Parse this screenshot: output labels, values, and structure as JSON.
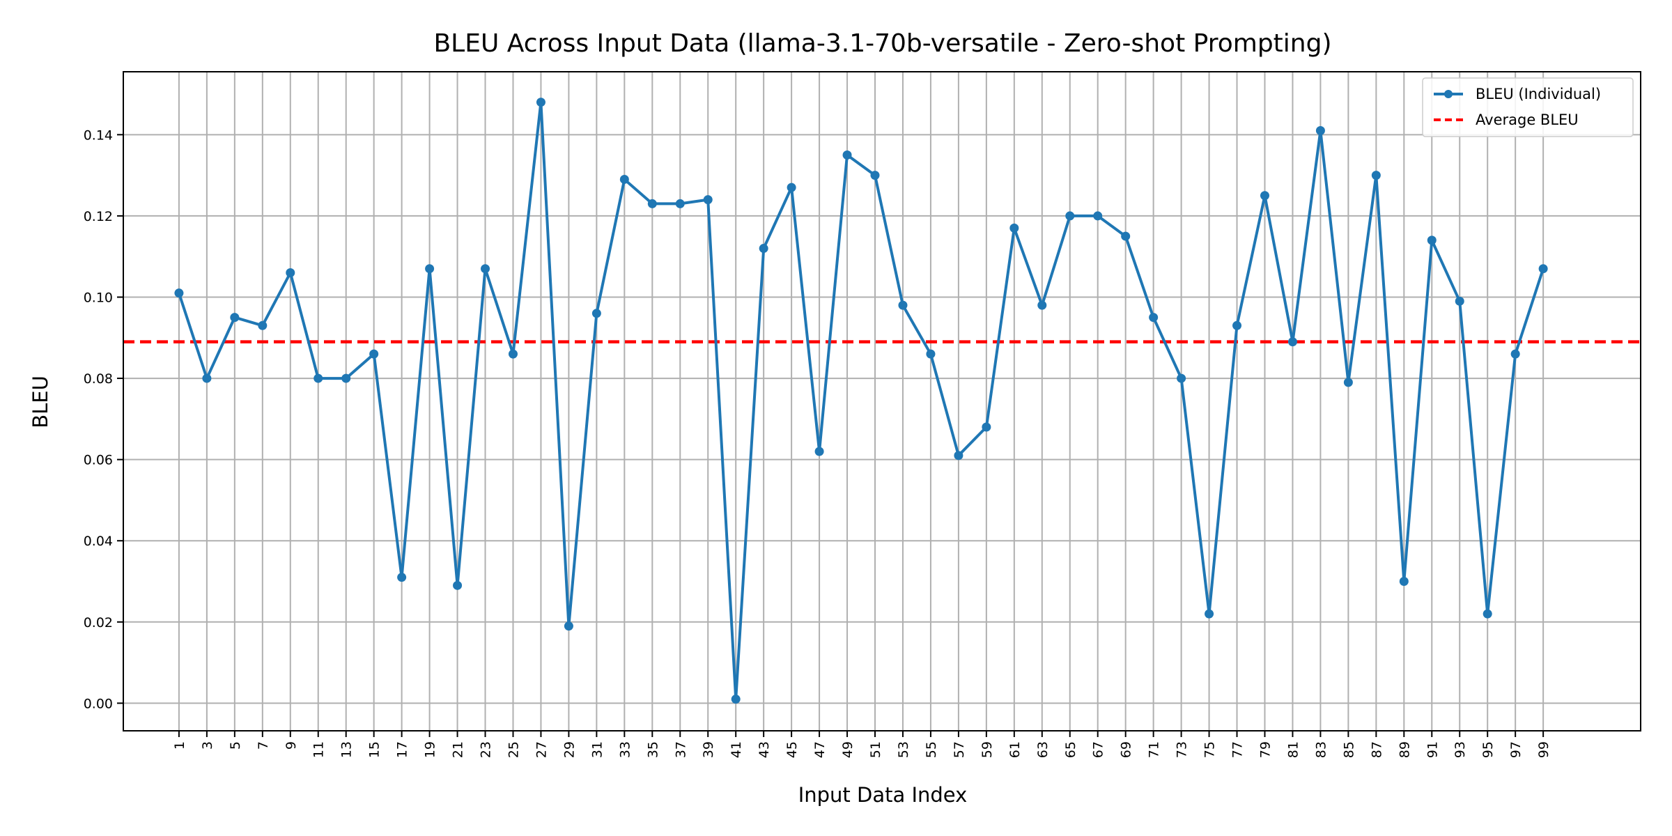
{
  "chart_data": {
    "type": "line",
    "title": "BLEU Across Input Data (llama-3.1-70b-versatile - Zero-shot Prompting)",
    "xlabel": "Input Data Index",
    "ylabel": "BLEU",
    "xlim": [
      -3,
      106
    ],
    "ylim": [
      -0.0068,
      0.1555
    ],
    "y_ticks": [
      0.0,
      0.02,
      0.04,
      0.06,
      0.08,
      0.1,
      0.12,
      0.14
    ],
    "y_tick_labels": [
      "0.00",
      "0.02",
      "0.04",
      "0.06",
      "0.08",
      "0.10",
      "0.12",
      "0.14"
    ],
    "x_ticks": [
      1,
      3,
      5,
      7,
      9,
      11,
      13,
      15,
      17,
      19,
      21,
      23,
      25,
      27,
      29,
      31,
      33,
      35,
      37,
      39,
      41,
      43,
      45,
      47,
      49,
      51,
      53,
      55,
      57,
      59,
      61,
      63,
      65,
      67,
      69,
      71,
      73,
      75,
      77,
      79,
      81,
      83,
      85,
      87,
      89,
      91,
      93,
      95,
      97,
      99
    ],
    "x_tick_labels": [
      "1",
      "3",
      "5",
      "7",
      "9",
      "11",
      "13",
      "15",
      "17",
      "19",
      "21",
      "23",
      "25",
      "27",
      "29",
      "31",
      "33",
      "35",
      "37",
      "39",
      "41",
      "43",
      "45",
      "47",
      "49",
      "51",
      "53",
      "55",
      "57",
      "59",
      "61",
      "63",
      "65",
      "67",
      "69",
      "71",
      "73",
      "75",
      "77",
      "79",
      "81",
      "83",
      "85",
      "87",
      "89",
      "91",
      "93",
      "95",
      "97",
      "99"
    ],
    "grid": true,
    "legend_position": "top-right",
    "series": [
      {
        "name": "BLEU (Individual)",
        "color": "#1f77b4",
        "marker": "circle",
        "x": [
          1,
          3,
          5,
          7,
          9,
          11,
          13,
          15,
          17,
          19,
          21,
          23,
          25,
          27,
          29,
          31,
          33,
          35,
          37,
          39,
          41,
          43,
          45,
          47,
          49,
          51,
          53,
          55,
          57,
          59,
          61,
          63,
          65,
          67,
          69,
          71,
          73,
          75,
          77,
          79,
          81,
          83,
          85,
          87,
          89,
          91,
          93,
          95,
          97,
          99
        ],
        "values": [
          0.101,
          0.08,
          0.095,
          0.093,
          0.106,
          0.08,
          0.08,
          0.086,
          0.031,
          0.107,
          0.029,
          0.107,
          0.086,
          0.148,
          0.019,
          0.096,
          0.129,
          0.123,
          0.123,
          0.124,
          0.001,
          0.112,
          0.127,
          0.062,
          0.135,
          0.13,
          0.098,
          0.086,
          0.061,
          0.068,
          0.117,
          0.098,
          0.12,
          0.12,
          0.115,
          0.095,
          0.08,
          0.022,
          0.093,
          0.125,
          0.089,
          0.141,
          0.079,
          0.13,
          0.03,
          0.114,
          0.099,
          0.022,
          0.086,
          0.107
        ]
      }
    ],
    "reference_lines": [
      {
        "name": "Average BLEU",
        "value": 0.089,
        "color": "#ff0000",
        "style": "dashed"
      }
    ]
  }
}
